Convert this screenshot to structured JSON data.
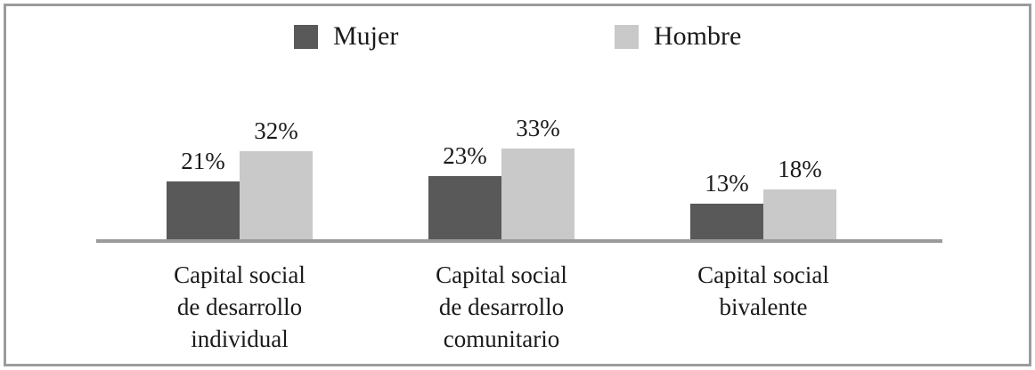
{
  "chart_data": {
    "type": "bar",
    "title": "",
    "xlabel": "",
    "ylabel": "",
    "ylim": [
      0,
      40
    ],
    "grid": false,
    "legend_position": "top",
    "value_label_format": "percent",
    "categories": [
      "Capital social\nde desarrollo\nindividual",
      "Capital social\nde desarrollo\ncomunitario",
      "Capital social\nbivalente"
    ],
    "series": [
      {
        "name": "Mujer",
        "color": "#595959",
        "values": [
          21,
          23,
          13
        ],
        "labels": [
          "21%",
          "23%",
          "13%"
        ]
      },
      {
        "name": "Hombre",
        "color": "#c9c9c9",
        "values": [
          32,
          33,
          18
        ],
        "labels": [
          "32%",
          "33%",
          "18%"
        ]
      }
    ]
  },
  "colors": {
    "background": "#ffffff",
    "frame_border": "#9b9b9b",
    "axis": "#9b9b9b",
    "text": "#1a1a1a"
  }
}
